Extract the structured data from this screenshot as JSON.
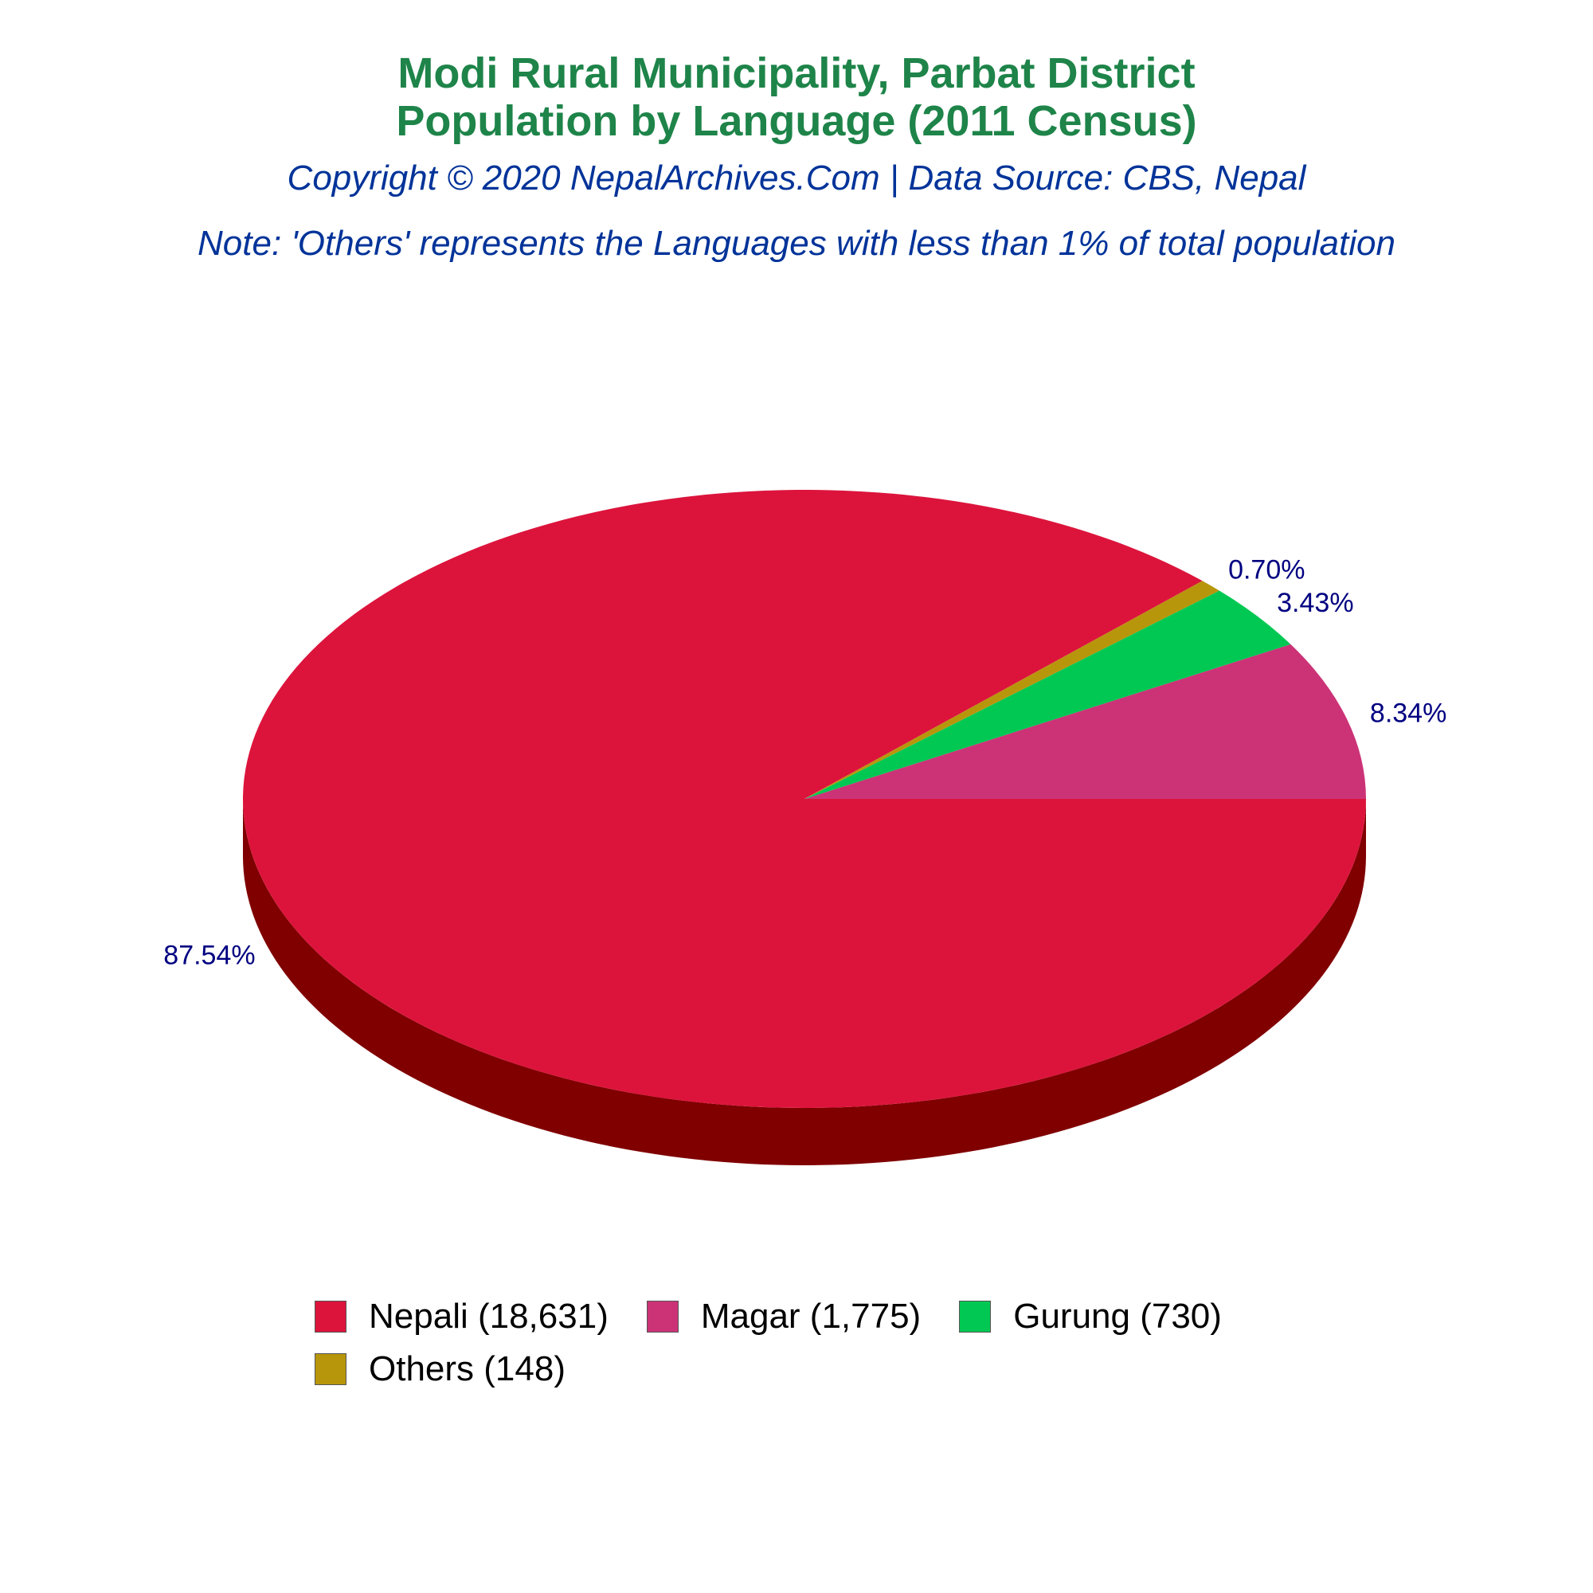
{
  "title_line1": "Modi Rural Municipality, Parbat District",
  "title_line2": "Population by Language (2011 Census)",
  "subtitle": "Copyright © 2020 NepalArchives.Com | Data Source: CBS, Nepal",
  "note": "Note: 'Others' represents the Languages with less than 1% of total population",
  "chart_data": {
    "type": "pie",
    "style": "3d",
    "categories": [
      "Nepali",
      "Magar",
      "Gurung",
      "Others"
    ],
    "values": [
      18631,
      1775,
      730,
      148
    ],
    "percent_labels": [
      "87.54%",
      "8.34%",
      "3.43%",
      "0.70%"
    ],
    "colors": [
      "#dc143c",
      "#cc3377",
      "#00c853",
      "#b8960c"
    ],
    "side_color": "#800000",
    "legend_position": "bottom",
    "legend_labels": [
      "Nepali (18,631)",
      "Magar (1,775)",
      "Gurung (730)",
      "Others (148)"
    ]
  }
}
